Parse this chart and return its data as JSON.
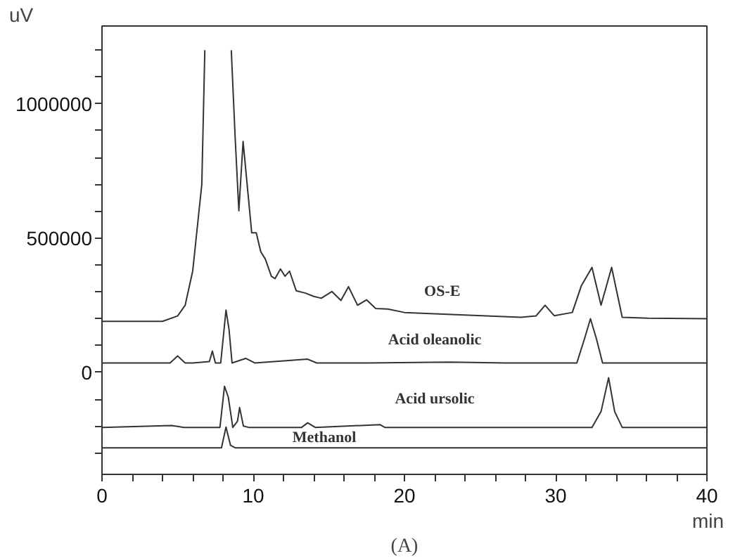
{
  "chart_data": {
    "type": "line",
    "xlabel": "min",
    "ylabel": "uV",
    "annotations": [
      "(A)"
    ],
    "xlim": [
      0,
      40
    ],
    "ylim": [
      -380000,
      1290000
    ],
    "xticks": [
      0,
      {
        "value": 2,
        "label": null
      },
      {
        "value": 4,
        "label": null
      },
      {
        "value": 6,
        "label": null
      },
      {
        "value": 8,
        "label": null
      },
      10,
      {
        "value": 12,
        "label": null
      },
      {
        "value": 14,
        "label": null
      },
      {
        "value": 16,
        "label": null
      },
      {
        "value": 18,
        "label": null
      },
      20,
      {
        "value": 22,
        "label": null
      },
      {
        "value": 24,
        "label": null
      },
      {
        "value": 26,
        "label": null
      },
      {
        "value": 28,
        "label": null
      },
      30,
      {
        "value": 32,
        "label": null
      },
      {
        "value": 34,
        "label": null
      },
      {
        "value": 36,
        "label": null
      },
      {
        "value": 38,
        "label": null
      },
      40
    ],
    "yticks": [
      {
        "value": -300000,
        "label": null
      },
      {
        "value": -200000,
        "label": null
      },
      {
        "value": -100000,
        "label": null
      },
      0,
      {
        "value": 100000,
        "label": null
      },
      {
        "value": 200000,
        "label": null
      },
      {
        "value": 300000,
        "label": null
      },
      {
        "value": 400000,
        "label": null
      },
      500000,
      {
        "value": 600000,
        "label": null
      },
      {
        "value": 700000,
        "label": null
      },
      {
        "value": 800000,
        "label": null
      },
      {
        "value": 900000,
        "label": null
      },
      1000000,
      {
        "value": 1100000,
        "label": null
      },
      {
        "value": 1200000,
        "label": null
      }
    ],
    "grid": false,
    "legend": false,
    "marker": "none",
    "line_style": "solid",
    "series": [
      {
        "name": "OS-E",
        "color": "#333333",
        "x": [
          0,
          4.0,
          5.0,
          5.5,
          6.0,
          6.6,
          6.8,
          7.6,
          8.55,
          8.8,
          9.05,
          9.33,
          9.9,
          10.2,
          10.5,
          10.8,
          11.2,
          11.44,
          11.8,
          12.1,
          12.4,
          12.84,
          13.46,
          14.0,
          14.5,
          15.2,
          15.8,
          16.3,
          16.9,
          17.5,
          18.1,
          18.9,
          20.0,
          23.7,
          27.7,
          28.7,
          29.3,
          29.9,
          31.1,
          31.7,
          32.4,
          33.0,
          33.7,
          34.4,
          36.1,
          40
        ],
        "values": [
          190000,
          190000,
          210000,
          250000,
          378000,
          700000,
          1200000,
          null,
          1200000,
          881000,
          602000,
          860000,
          520000,
          520000,
          449000,
          422000,
          358000,
          349000,
          385000,
          358000,
          377000,
          304000,
          295000,
          283000,
          276000,
          301000,
          268000,
          319000,
          250000,
          270000,
          238000,
          236000,
          223000,
          214000,
          205000,
          210000,
          250000,
          211000,
          223000,
          323000,
          391000,
          250000,
          391000,
          205000,
          202000,
          200000
        ]
      },
      {
        "name": "Acid oleanolic",
        "color": "#333333",
        "x": [
          0,
          4.5,
          5.0,
          5.5,
          6.0,
          7.1,
          7.3,
          7.5,
          7.85,
          8.2,
          8.4,
          8.6,
          9.5,
          10.1,
          13.6,
          14.2,
          17.5,
          23.0,
          26.7,
          31.4,
          31.9,
          32.3,
          32.7,
          33.1,
          40
        ],
        "values": [
          35000,
          35000,
          61000,
          35000,
          35000,
          40000,
          79000,
          35000,
          35000,
          232000,
          160000,
          35000,
          52000,
          35000,
          49000,
          35000,
          35000,
          38000,
          35000,
          35000,
          124000,
          200000,
          124000,
          35000,
          35000
        ]
      },
      {
        "name": "Acid ursolic",
        "color": "#333333",
        "x": [
          0,
          4.6,
          5.4,
          7.8,
          8.1,
          8.35,
          8.65,
          8.96,
          9.1,
          9.35,
          9.7,
          13.2,
          13.6,
          14.1,
          18.4,
          18.7,
          32.4,
          33.0,
          33.5,
          33.9,
          34.4,
          40
        ],
        "values": [
          -205000,
          -198000,
          -205000,
          -205000,
          -52000,
          -92000,
          -205000,
          -182000,
          -131000,
          -200000,
          -205000,
          -205000,
          -188000,
          -205000,
          -195000,
          -205000,
          -205000,
          -146000,
          -20000,
          -146000,
          -205000,
          -205000
        ]
      },
      {
        "name": "Methanol",
        "color": "#333333",
        "x": [
          0,
          7.9,
          8.2,
          8.5,
          8.8,
          40
        ],
        "values": [
          -281000,
          -281000,
          -204000,
          -272000,
          -281000,
          -281000
        ]
      }
    ]
  }
}
